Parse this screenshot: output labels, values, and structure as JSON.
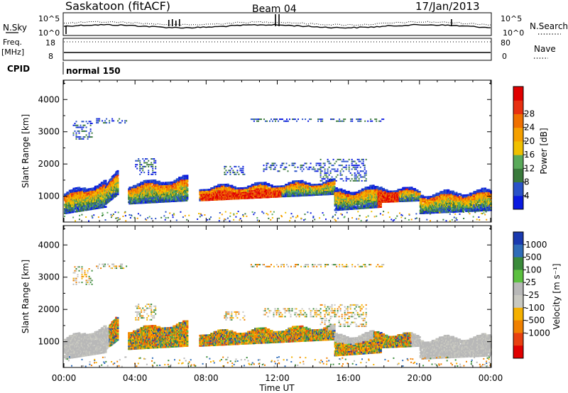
{
  "header": {
    "station": "Saskatoon (fitACF)",
    "beam": "Beam 04",
    "date": "17/Jan/2013"
  },
  "top_panels": {
    "nsky_label": "N.Sky",
    "nsky_ticks": [
      "10^5",
      "10^0"
    ],
    "nsearch_label": "N.Search",
    "nsearch_ticks": [
      "10^5",
      "10^0"
    ],
    "freq_label": "Freq.",
    "freq_unit": "[MHz]",
    "freq_ticks": [
      "18",
      "8"
    ],
    "nave_label": "Nave",
    "nave_ticks": [
      "80",
      "0"
    ],
    "cpid_label": "CPID",
    "cpid_value": "normal 150"
  },
  "chart_data": [
    {
      "type": "heatmap",
      "name": "power",
      "ylabel": "Slant Range [km]",
      "xlabel": "",
      "ylim": [
        200,
        4600
      ],
      "xlim": [
        "00:00",
        "24:00"
      ],
      "y_ticks": [
        "1000",
        "2000",
        "3000",
        "4000"
      ],
      "x_ticks": [
        "00:00",
        "04:00",
        "08:00",
        "12:00",
        "16:00",
        "20:00",
        "00:00"
      ],
      "colorbar": {
        "label": "Power [dB]",
        "ticks": [
          "4",
          "8",
          "12",
          "16",
          "20",
          "24",
          "28"
        ],
        "colors": [
          "#0a1ae0",
          "#2a52c8",
          "#3a7a3c",
          "#5aaa5a",
          "#f0c000",
          "#f5a000",
          "#f07000",
          "#e83010",
          "#e00000"
        ]
      }
    },
    {
      "type": "heatmap",
      "name": "velocity",
      "ylabel": "Slant Range [km]",
      "xlabel": "Time UT",
      "ylim": [
        200,
        4600
      ],
      "xlim": [
        "00:00",
        "24:00"
      ],
      "y_ticks": [
        "1000",
        "2000",
        "3000",
        "4000"
      ],
      "x_ticks": [
        "00:00",
        "04:00",
        "08:00",
        "12:00",
        "16:00",
        "20:00",
        "00:00"
      ],
      "colorbar": {
        "label": "Velocity [m s⁻¹]",
        "ticks": [
          "1000",
          "500",
          "100",
          "25",
          "-25",
          "-100",
          "-500",
          "-1000"
        ],
        "colors": [
          "#1a3ab0",
          "#2f6cb8",
          "#3a8a3a",
          "#5cc040",
          "#b8b8b8",
          "#c8c8c0",
          "#f5b000",
          "#f08000",
          "#e84010",
          "#e00000"
        ]
      }
    }
  ],
  "time_axis": {
    "label": "Time UT",
    "ticks": [
      "00:00",
      "04:00",
      "08:00",
      "12:00",
      "16:00",
      "20:00",
      "00:00"
    ]
  }
}
